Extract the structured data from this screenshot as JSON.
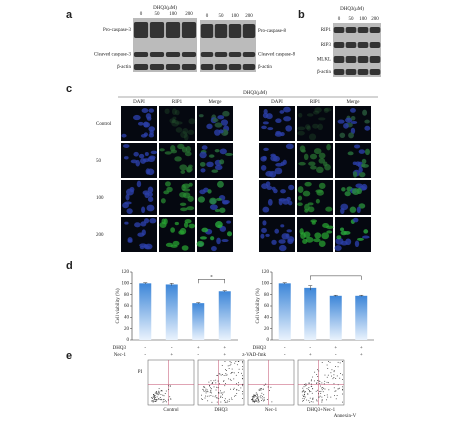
{
  "panels": {
    "a": {
      "label": "a",
      "title": "DHQ3(μM)",
      "lanes": [
        "0",
        "50",
        "100",
        "200"
      ],
      "left_rows": [
        "Pro-caspase-3",
        "Cleaved caspase-3",
        "β-actin"
      ],
      "right_rows": [
        "Pro-caspase-8",
        "Cleaved caspase-8",
        "β-actin"
      ]
    },
    "b": {
      "label": "b",
      "title": "DHQ3(μM)",
      "lanes": [
        "0",
        "50",
        "100",
        "200"
      ],
      "rows": [
        "RIP1",
        "RIP3",
        "MLKL",
        "β-actin"
      ]
    },
    "c": {
      "label": "c",
      "title": "DHQ3(μM)",
      "columns": [
        "DAPI",
        "RIP1",
        "Merge"
      ],
      "rows": [
        "Control",
        "50",
        "100",
        "200"
      ]
    },
    "d": {
      "label": "d"
    },
    "e": {
      "label": "e",
      "y_label": "PI",
      "x_label": "Annexin-V",
      "groups": [
        "Control",
        "DHQ3",
        "Nec-1",
        "DHQ3+Nec-1"
      ]
    }
  },
  "chart_data": [
    {
      "type": "bar",
      "y_label": "Cell viability (%)",
      "values": [
        100,
        98,
        65,
        86
      ],
      "errors": [
        1,
        2,
        1,
        1
      ],
      "color": "#3d86d8",
      "ylim": [
        0,
        120
      ],
      "yticks": [
        0,
        20,
        40,
        60,
        80,
        100,
        120
      ],
      "conditions": [
        {
          "name": "DHQ3",
          "signs": [
            "-",
            "-",
            "+",
            "+"
          ]
        },
        {
          "name": "Nec-1",
          "signs": [
            "-",
            "+",
            "-",
            "+"
          ]
        }
      ],
      "annotation": "*"
    },
    {
      "type": "bar",
      "y_label": "Cell viability (%)",
      "values": [
        100,
        92,
        78,
        78
      ],
      "errors": [
        1,
        4,
        1,
        1
      ],
      "color": "#3d86d8",
      "ylim": [
        0,
        120
      ],
      "yticks": [
        0,
        20,
        40,
        60,
        80,
        100,
        120
      ],
      "conditions": [
        {
          "name": "DHQ3",
          "signs": [
            "-",
            "-",
            "+",
            "+"
          ]
        },
        {
          "name": "z-VAD-fmk",
          "signs": [
            "-",
            "+",
            "-",
            "+"
          ]
        }
      ]
    }
  ]
}
